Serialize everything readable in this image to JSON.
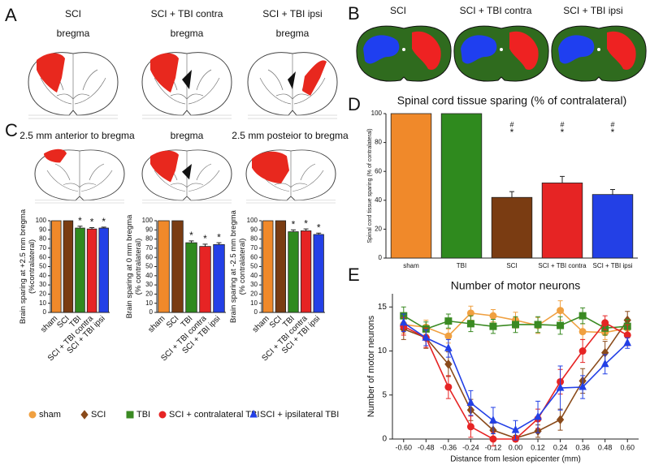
{
  "figure": {
    "panel_a": {
      "label": "A",
      "columns": [
        {
          "title": "SCI",
          "subtitle": "bregma"
        },
        {
          "title": "SCI + TBI contra",
          "subtitle": "bregma"
        },
        {
          "title": "SCI + TBI ipsi",
          "subtitle": "bregma"
        }
      ]
    },
    "panel_b": {
      "label": "B",
      "columns": [
        "SCI",
        "SCI + TBI contra",
        "SCI + TBI ipsi"
      ]
    },
    "panel_c": {
      "label": "C",
      "sections": [
        "2.5 mm anterior to bregma",
        "bregma",
        "2.5 mm posteior to bregma"
      ]
    },
    "panel_d": {
      "label": "D"
    },
    "panel_e": {
      "label": "E"
    }
  },
  "chart_data": [
    {
      "type": "bar",
      "ylabel": [
        "Brain sparing at +2.5 mm bregma",
        "(%contralateral)"
      ],
      "categories": [
        "sham",
        "SCI",
        "TBI",
        "SCI + TBI contra",
        "SCI + TBI ipsi"
      ],
      "values": [
        100,
        100,
        92,
        91,
        92
      ],
      "errors": [
        null,
        null,
        2,
        1.5,
        1
      ],
      "significance": [
        null,
        null,
        "*",
        "*",
        "*"
      ],
      "colors": [
        "#f0892a",
        "#7a3c12",
        "#2f8a1e",
        "#e62424",
        "#2340e6"
      ],
      "ylim": [
        0,
        100
      ],
      "yticks": [
        0,
        10,
        20,
        30,
        40,
        50,
        60,
        70,
        80,
        90,
        100
      ]
    },
    {
      "type": "bar",
      "ylabel": [
        "Brain  sparing at 0 mm bregma",
        "(% contralateral)"
      ],
      "categories": [
        "sham",
        "SCI",
        "TBI",
        "SCI + TBI contra",
        "SCI + TBI ipsi"
      ],
      "values": [
        100,
        100,
        76,
        72,
        74
      ],
      "errors": [
        null,
        null,
        2,
        2.5,
        2
      ],
      "significance": [
        null,
        null,
        "*",
        "*",
        "*"
      ],
      "colors": [
        "#f0892a",
        "#7a3c12",
        "#2f8a1e",
        "#e62424",
        "#2340e6"
      ],
      "ylim": [
        0,
        100
      ],
      "yticks": [
        0,
        10,
        20,
        30,
        40,
        50,
        60,
        70,
        80,
        90,
        100
      ]
    },
    {
      "type": "bar",
      "ylabel": [
        "Brain sparing at -2.5 mm bregma",
        "(% contralateral)"
      ],
      "categories": [
        "sham",
        "SCI",
        "TBI",
        "SCI + TBI contra",
        "SCI + TBI ipsi"
      ],
      "values": [
        100,
        100,
        88,
        89,
        85
      ],
      "errors": [
        null,
        null,
        2,
        2,
        1.5
      ],
      "significance": [
        null,
        null,
        "*",
        "*",
        "*"
      ],
      "colors": [
        "#f0892a",
        "#7a3c12",
        "#2f8a1e",
        "#e62424",
        "#2340e6"
      ],
      "ylim": [
        0,
        100
      ],
      "yticks": [
        0,
        10,
        20,
        30,
        40,
        50,
        60,
        70,
        80,
        90,
        100
      ]
    },
    {
      "type": "bar",
      "title": "Spinal cord tissue sparing (% of contralateral)",
      "ylabel": [
        "Spinal cord tissue sparing (% of contralateral)"
      ],
      "categories": [
        "sham",
        "TBI",
        "SCI",
        "SCI + TBI contra",
        "SCI + TBI ipsi"
      ],
      "values": [
        100,
        100,
        42,
        52,
        44
      ],
      "errors": [
        null,
        null,
        4,
        4.5,
        3.5
      ],
      "significance_2": [
        null,
        null,
        "#",
        "#",
        "#"
      ],
      "significance": [
        null,
        null,
        "*",
        "*",
        "*"
      ],
      "colors": [
        "#f0892a",
        "#2f8a1e",
        "#7a3c12",
        "#e62424",
        "#2340e6"
      ],
      "ylim": [
        0,
        100
      ],
      "yticks": [
        0,
        20,
        40,
        60,
        80,
        100
      ]
    },
    {
      "type": "line",
      "title": "Number of motor neurons",
      "xlabel": "Distance from lesion epicenter (mm)",
      "ylabel": "Number of motor neurons",
      "x": [
        -0.6,
        -0.48,
        -0.36,
        -0.24,
        -0.12,
        0,
        0.12,
        0.24,
        0.36,
        0.48,
        0.6
      ],
      "series": [
        {
          "name": "sham",
          "color": "#f0a040",
          "marker": "circle",
          "values": [
            13,
            12.7,
            11.7,
            14.3,
            14,
            13.5,
            12.9,
            14.6,
            12.2,
            12.1,
            12.6
          ],
          "errors": [
            1,
            0.8,
            0.8,
            0.8,
            0.7,
            0.9,
            0.9,
            1.1,
            0.9,
            0.8,
            1
          ]
        },
        {
          "name": "SCI",
          "color": "#8a4a1a",
          "marker": "diamond",
          "values": [
            12.5,
            11.5,
            8.5,
            3.3,
            1,
            0.1,
            0.9,
            2.2,
            6.6,
            9.8,
            13.5
          ],
          "errors": [
            1.2,
            1.2,
            1.4,
            1.2,
            0.8,
            0.3,
            0.7,
            1.2,
            1.4,
            1.3,
            1
          ]
        },
        {
          "name": "TBI",
          "color": "#3a8a22",
          "marker": "square",
          "values": [
            14,
            12.5,
            13.4,
            13.1,
            12.8,
            13,
            13,
            12.9,
            14,
            12.6,
            12.8
          ],
          "errors": [
            1,
            0.8,
            0.8,
            0.9,
            0.8,
            0.9,
            0.9,
            1,
            0.9,
            0.8,
            0.8
          ]
        },
        {
          "name": "SCI + contralateral TBI",
          "color": "#e62424",
          "marker": "circle",
          "values": [
            12.8,
            11.5,
            5.9,
            1.4,
            0,
            0,
            2.3,
            6.5,
            10,
            13.2,
            11.8
          ],
          "errors": [
            1,
            1.1,
            1.3,
            1.2,
            0.8,
            0.3,
            1.1,
            1.4,
            1.3,
            0.8,
            1.2
          ]
        },
        {
          "name": "SCI + ipsilateral TBI",
          "color": "#2340e6",
          "marker": "triangle",
          "values": [
            13.2,
            11.5,
            10.3,
            4.1,
            2.1,
            1,
            2.5,
            5.8,
            5.9,
            8.5,
            10.9
          ],
          "errors": [
            1,
            0.9,
            1,
            1.4,
            1.5,
            1.1,
            1.8,
            2.5,
            1.3,
            1.1,
            0.6
          ]
        }
      ],
      "xlim": [
        -0.66,
        0.66
      ],
      "xticks": [
        {
          "value": -0.6,
          "label": "-0.60"
        },
        {
          "value": -0.48,
          "label": "-0.48"
        },
        {
          "value": -0.36,
          "label": "-0.36"
        },
        {
          "value": -0.24,
          "label": "-0.24"
        },
        {
          "value": -0.12,
          "label": "-0.12"
        },
        {
          "value": 0,
          "label": "0.00"
        },
        {
          "value": 0.12,
          "label": "0.12"
        },
        {
          "value": 0.24,
          "label": "0.24"
        },
        {
          "value": 0.36,
          "label": "0.36"
        },
        {
          "value": 0.48,
          "label": "0.48"
        },
        {
          "value": 0.6,
          "label": "0.60"
        }
      ],
      "ylim": [
        0,
        16.5
      ],
      "yticks": [
        0,
        5,
        10,
        15
      ]
    }
  ]
}
